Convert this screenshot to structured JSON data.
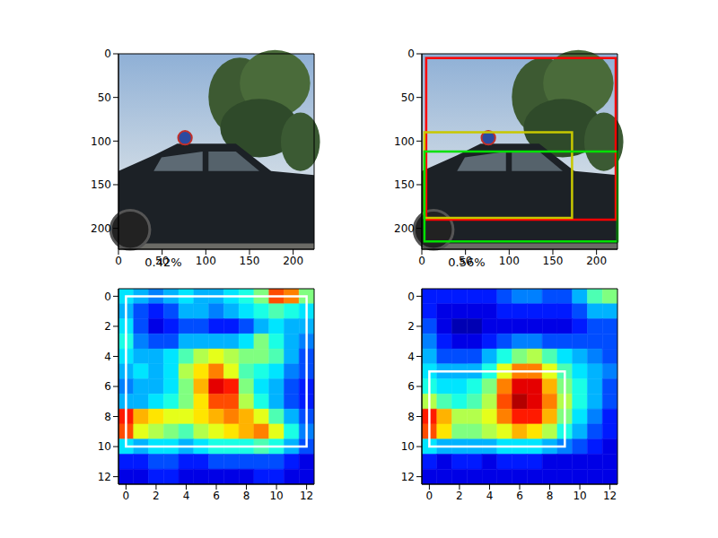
{
  "chart_data": [
    {
      "type": "image",
      "xlim": [
        0,
        224
      ],
      "ylim": [
        224,
        0
      ],
      "xticks": [
        0,
        50,
        100,
        150,
        200
      ],
      "yticks": [
        0,
        50,
        100,
        150,
        200
      ]
    },
    {
      "type": "image",
      "xlim": [
        0,
        224
      ],
      "ylim": [
        224,
        0
      ],
      "xticks": [
        0,
        50,
        100,
        150,
        200
      ],
      "yticks": [
        0,
        50,
        100,
        150,
        200
      ],
      "boxes": [
        {
          "color": "#ff0000",
          "x": [
            5,
            222
          ],
          "y": [
            5,
            190
          ]
        },
        {
          "color": "#c8c800",
          "x": [
            3,
            172
          ],
          "y": [
            90,
            188
          ]
        },
        {
          "color": "#00e000",
          "x": [
            3,
            224
          ],
          "y": [
            112,
            215
          ]
        }
      ]
    },
    {
      "type": "heatmap",
      "title": "0.42%",
      "xlim": [
        -0.5,
        12.5
      ],
      "ylim": [
        12.5,
        -0.5
      ],
      "xticks": [
        0,
        2,
        4,
        6,
        8,
        10,
        12
      ],
      "yticks": [
        0,
        2,
        4,
        6,
        8,
        10,
        12
      ],
      "boxes": [
        {
          "color": "#ffffff",
          "x": [
            0,
            12
          ],
          "y": [
            0,
            10
          ]
        }
      ],
      "cells": [
        [
          0.35,
          0.3,
          0.25,
          0.3,
          0.35,
          0.3,
          0.3,
          0.35,
          0.4,
          0.5,
          0.8,
          0.75,
          0.5
        ],
        [
          0.3,
          0.2,
          0.15,
          0.2,
          0.3,
          0.3,
          0.25,
          0.3,
          0.35,
          0.4,
          0.45,
          0.4,
          0.35
        ],
        [
          0.35,
          0.2,
          0.1,
          0.15,
          0.2,
          0.2,
          0.15,
          0.15,
          0.2,
          0.3,
          0.35,
          0.3,
          0.3
        ],
        [
          0.4,
          0.25,
          0.2,
          0.2,
          0.3,
          0.3,
          0.3,
          0.3,
          0.35,
          0.5,
          0.4,
          0.3,
          0.25
        ],
        [
          0.35,
          0.3,
          0.3,
          0.35,
          0.45,
          0.55,
          0.6,
          0.55,
          0.5,
          0.5,
          0.45,
          0.3,
          0.2
        ],
        [
          0.3,
          0.35,
          0.3,
          0.35,
          0.55,
          0.65,
          0.75,
          0.6,
          0.45,
          0.4,
          0.35,
          0.25,
          0.2
        ],
        [
          0.25,
          0.3,
          0.3,
          0.35,
          0.5,
          0.7,
          0.9,
          0.85,
          0.5,
          0.35,
          0.3,
          0.2,
          0.15
        ],
        [
          0.3,
          0.3,
          0.35,
          0.4,
          0.5,
          0.65,
          0.8,
          0.8,
          0.55,
          0.4,
          0.3,
          0.2,
          0.15
        ],
        [
          0.85,
          0.7,
          0.65,
          0.6,
          0.6,
          0.65,
          0.7,
          0.75,
          0.7,
          0.6,
          0.45,
          0.3,
          0.2
        ],
        [
          0.8,
          0.6,
          0.55,
          0.5,
          0.45,
          0.55,
          0.6,
          0.65,
          0.7,
          0.75,
          0.6,
          0.4,
          0.25
        ],
        [
          0.35,
          0.3,
          0.35,
          0.35,
          0.3,
          0.35,
          0.4,
          0.4,
          0.4,
          0.45,
          0.4,
          0.3,
          0.2
        ],
        [
          0.15,
          0.15,
          0.2,
          0.2,
          0.15,
          0.15,
          0.2,
          0.2,
          0.2,
          0.2,
          0.2,
          0.15,
          0.1
        ],
        [
          0.1,
          0.1,
          0.15,
          0.15,
          0.1,
          0.1,
          0.1,
          0.1,
          0.1,
          0.15,
          0.15,
          0.1,
          0.1
        ]
      ]
    },
    {
      "type": "heatmap",
      "title": "0.56%",
      "xlim": [
        -0.5,
        12.5
      ],
      "ylim": [
        12.5,
        -0.5
      ],
      "xticks": [
        0,
        2,
        4,
        6,
        8,
        10,
        12
      ],
      "yticks": [
        0,
        2,
        4,
        6,
        8,
        10,
        12
      ],
      "boxes": [
        {
          "color": "#ffffff",
          "x": [
            0,
            9
          ],
          "y": [
            5,
            10
          ]
        }
      ],
      "cells": [
        [
          0.15,
          0.15,
          0.15,
          0.15,
          0.15,
          0.2,
          0.25,
          0.25,
          0.2,
          0.2,
          0.3,
          0.45,
          0.5
        ],
        [
          0.15,
          0.1,
          0.1,
          0.1,
          0.1,
          0.15,
          0.15,
          0.15,
          0.15,
          0.15,
          0.2,
          0.3,
          0.3
        ],
        [
          0.2,
          0.1,
          0.05,
          0.05,
          0.1,
          0.1,
          0.1,
          0.1,
          0.1,
          0.1,
          0.15,
          0.2,
          0.2
        ],
        [
          0.25,
          0.15,
          0.1,
          0.1,
          0.15,
          0.2,
          0.25,
          0.25,
          0.2,
          0.2,
          0.2,
          0.2,
          0.2
        ],
        [
          0.3,
          0.2,
          0.2,
          0.2,
          0.3,
          0.4,
          0.5,
          0.55,
          0.45,
          0.35,
          0.3,
          0.25,
          0.2
        ],
        [
          0.35,
          0.3,
          0.3,
          0.3,
          0.4,
          0.6,
          0.75,
          0.75,
          0.6,
          0.45,
          0.35,
          0.3,
          0.25
        ],
        [
          0.4,
          0.35,
          0.35,
          0.4,
          0.5,
          0.75,
          0.9,
          0.9,
          0.7,
          0.5,
          0.4,
          0.3,
          0.2
        ],
        [
          0.55,
          0.45,
          0.4,
          0.45,
          0.55,
          0.8,
          0.95,
          0.9,
          0.75,
          0.55,
          0.4,
          0.3,
          0.2
        ],
        [
          0.85,
          0.7,
          0.55,
          0.55,
          0.6,
          0.75,
          0.85,
          0.85,
          0.7,
          0.5,
          0.35,
          0.25,
          0.15
        ],
        [
          0.8,
          0.65,
          0.5,
          0.5,
          0.55,
          0.6,
          0.7,
          0.65,
          0.55,
          0.4,
          0.3,
          0.2,
          0.15
        ],
        [
          0.35,
          0.3,
          0.3,
          0.3,
          0.3,
          0.35,
          0.35,
          0.35,
          0.3,
          0.25,
          0.2,
          0.15,
          0.1
        ],
        [
          0.15,
          0.1,
          0.15,
          0.15,
          0.1,
          0.15,
          0.15,
          0.15,
          0.1,
          0.1,
          0.1,
          0.1,
          0.1
        ],
        [
          0.1,
          0.1,
          0.1,
          0.1,
          0.1,
          0.1,
          0.1,
          0.1,
          0.1,
          0.1,
          0.1,
          0.1,
          0.1
        ]
      ]
    }
  ]
}
